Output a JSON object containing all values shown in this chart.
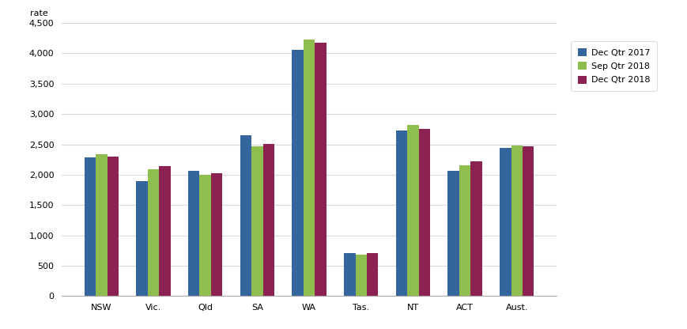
{
  "categories": [
    "NSW",
    "Vic.",
    "Qld",
    "SA",
    "WA",
    "Tas.",
    "NT",
    "ACT",
    "Aust."
  ],
  "series": {
    "Dec Qtr 2017": [
      2280,
      1900,
      2065,
      2650,
      4060,
      710,
      2730,
      2060,
      2445
    ],
    "Sep Qtr 2018": [
      2340,
      2085,
      2005,
      2470,
      4230,
      680,
      2820,
      2160,
      2475
    ],
    "Dec Qtr 2018": [
      2295,
      2140,
      2030,
      2510,
      4175,
      710,
      2760,
      2220,
      2465
    ]
  },
  "colors": {
    "Dec Qtr 2017": "#34659d",
    "Sep Qtr 2018": "#8fbe4e",
    "Dec Qtr 2018": "#8b2252"
  },
  "ylabel": "rate",
  "ylim": [
    0,
    4500
  ],
  "yticks": [
    0,
    500,
    1000,
    1500,
    2000,
    2500,
    3000,
    3500,
    4000,
    4500
  ],
  "ytick_labels": [
    "0",
    "500",
    "1,000",
    "1,500",
    "2,000",
    "2,500",
    "3,000",
    "3,500",
    "4,000",
    "4,500"
  ],
  "bar_width": 0.22,
  "legend_order": [
    "Dec Qtr 2017",
    "Sep Qtr 2018",
    "Dec Qtr 2018"
  ],
  "grid_color": "#d9d9d9",
  "background_color": "#ffffff",
  "font_size": 8,
  "legend_fontsize": 8
}
